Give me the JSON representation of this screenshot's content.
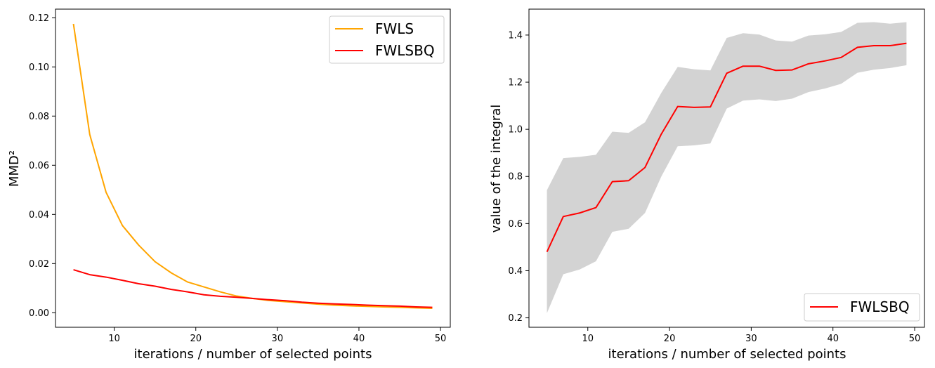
{
  "chart_data": [
    {
      "type": "line",
      "xlabel": "iterations / number of selected points",
      "ylabel": "MMD²",
      "xlim": [
        2.8,
        51.2
      ],
      "ylim": [
        -0.0059,
        0.1235
      ],
      "xticks": [
        10,
        20,
        30,
        40,
        50
      ],
      "yticks": [
        0.0,
        0.02,
        0.04,
        0.06,
        0.08,
        0.1,
        0.12
      ],
      "ytick_labels": [
        "0.00",
        "0.02",
        "0.04",
        "0.06",
        "0.08",
        "0.10",
        "0.12"
      ],
      "legend_position": "top-right",
      "x": [
        5,
        7,
        9,
        11,
        13,
        15,
        17,
        19,
        21,
        23,
        25,
        27,
        29,
        31,
        33,
        35,
        37,
        39,
        41,
        43,
        45,
        47,
        49
      ],
      "series": [
        {
          "name": "FWLS",
          "color": "#ffa500",
          "values": [
            0.1175,
            0.0725,
            0.049,
            0.0355,
            0.0275,
            0.0208,
            0.0162,
            0.0125,
            0.0105,
            0.0085,
            0.0068,
            0.0058,
            0.005,
            0.0045,
            0.004,
            0.0035,
            0.0031,
            0.0028,
            0.0026,
            0.0024,
            0.0022,
            0.002,
            0.0018
          ]
        },
        {
          "name": "FWLSBQ",
          "color": "#ff0000",
          "values": [
            0.0175,
            0.0155,
            0.0145,
            0.0132,
            0.0118,
            0.0108,
            0.0095,
            0.0085,
            0.0073,
            0.0067,
            0.0063,
            0.0058,
            0.0053,
            0.0049,
            0.0043,
            0.0039,
            0.0036,
            0.0034,
            0.0031,
            0.0029,
            0.0027,
            0.0024,
            0.0022
          ]
        }
      ]
    },
    {
      "type": "line",
      "xlabel": "iterations / number of selected points",
      "ylabel": "value of the integral",
      "xlim": [
        2.8,
        51.2
      ],
      "ylim": [
        0.16,
        1.51
      ],
      "xticks": [
        10,
        20,
        30,
        40,
        50
      ],
      "yticks": [
        0.2,
        0.4,
        0.6,
        0.8,
        1.0,
        1.2,
        1.4
      ],
      "ytick_labels": [
        "0.2",
        "0.4",
        "0.6",
        "0.8",
        "1.0",
        "1.2",
        "1.4"
      ],
      "legend_position": "bottom-right",
      "x": [
        5,
        7,
        9,
        11,
        13,
        15,
        17,
        19,
        21,
        23,
        25,
        27,
        29,
        31,
        33,
        35,
        37,
        39,
        41,
        43,
        45,
        47,
        49
      ],
      "series": [
        {
          "name": "FWLSBQ",
          "color": "#ff0000",
          "values": [
            0.48,
            0.63,
            0.645,
            0.668,
            0.778,
            0.782,
            0.838,
            0.98,
            1.097,
            1.093,
            1.095,
            1.238,
            1.268,
            1.268,
            1.25,
            1.252,
            1.278,
            1.29,
            1.305,
            1.348,
            1.355,
            1.355,
            1.365
          ],
          "band_lower": [
            0.22,
            0.385,
            0.405,
            0.44,
            0.565,
            0.578,
            0.645,
            0.8,
            0.928,
            0.932,
            0.94,
            1.088,
            1.122,
            1.127,
            1.12,
            1.13,
            1.158,
            1.173,
            1.193,
            1.24,
            1.253,
            1.26,
            1.272
          ],
          "band_upper": [
            0.742,
            0.878,
            0.883,
            0.892,
            0.99,
            0.985,
            1.03,
            1.155,
            1.265,
            1.255,
            1.25,
            1.388,
            1.408,
            1.402,
            1.377,
            1.372,
            1.398,
            1.403,
            1.413,
            1.452,
            1.455,
            1.448,
            1.455
          ],
          "band_color": "#d3d3d3"
        }
      ]
    }
  ]
}
